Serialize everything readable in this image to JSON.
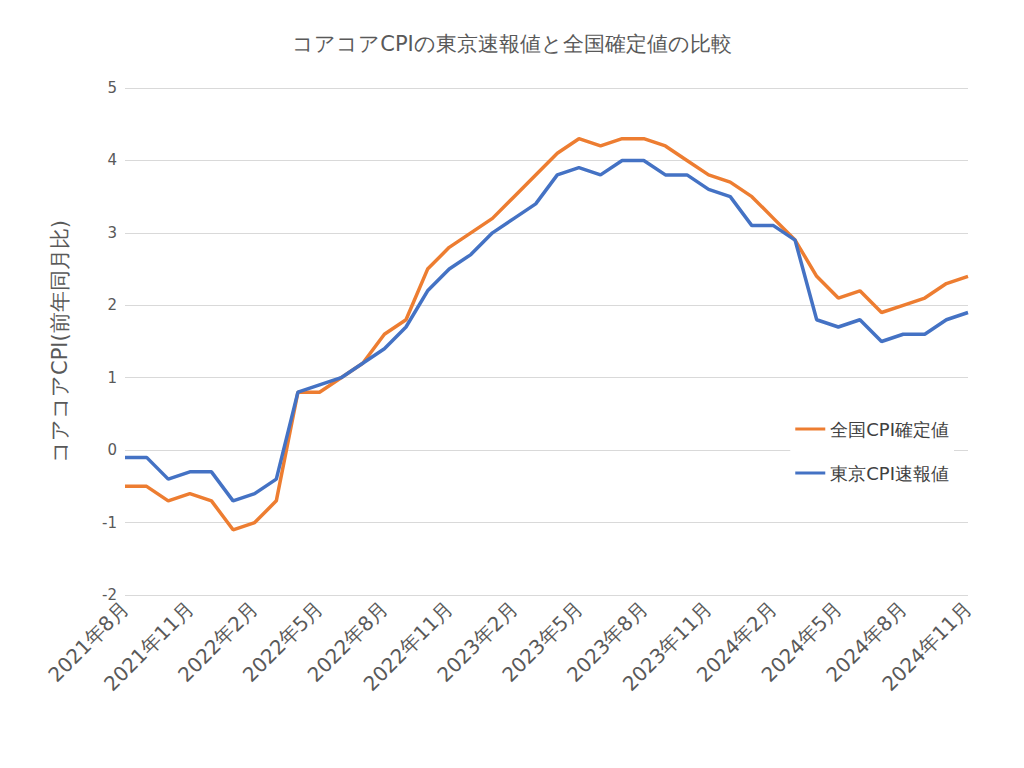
{
  "chart_data": {
    "type": "line",
    "title": "コアコアCPIの東京速報値と全国確定値の比較",
    "y_label": "コアコアCPI(前年同月比)",
    "categories": [
      "2021年8月",
      null,
      null,
      "2021年11月",
      null,
      null,
      "2022年2月",
      null,
      null,
      "2022年5月",
      null,
      null,
      "2022年8月",
      null,
      null,
      "2022年11月",
      null,
      null,
      "2023年2月",
      null,
      null,
      "2023年5月",
      null,
      null,
      "2023年8月",
      null,
      null,
      "2023年11月",
      null,
      null,
      "2024年2月",
      null,
      null,
      "2024年5月",
      null,
      null,
      "2024年8月",
      null,
      null,
      "2024年11月"
    ],
    "series": [
      {
        "name": "全国CPI確定値",
        "color": "#ed7d31",
        "values": [
          -0.5,
          -0.5,
          -0.7,
          -0.6,
          -0.7,
          -1.1,
          -1.0,
          -0.7,
          0.8,
          0.8,
          1.0,
          1.2,
          1.6,
          1.8,
          2.5,
          2.8,
          3.0,
          3.2,
          3.5,
          3.8,
          4.1,
          4.3,
          4.2,
          4.3,
          4.3,
          4.2,
          4.0,
          3.8,
          3.7,
          3.5,
          3.2,
          2.9,
          2.4,
          2.1,
          2.2,
          1.9,
          2.0,
          2.1,
          2.3,
          2.4
        ]
      },
      {
        "name": "東京CPI速報値",
        "color": "#4472c4",
        "values": [
          -0.1,
          -0.1,
          -0.4,
          -0.3,
          -0.3,
          -0.7,
          -0.6,
          -0.4,
          0.8,
          0.9,
          1.0,
          1.2,
          1.4,
          1.7,
          2.2,
          2.5,
          2.7,
          3.0,
          3.2,
          3.4,
          3.8,
          3.9,
          3.8,
          4.0,
          4.0,
          3.8,
          3.8,
          3.6,
          3.5,
          3.1,
          3.1,
          2.9,
          1.8,
          1.7,
          1.8,
          1.5,
          1.6,
          1.6,
          1.8,
          1.9
        ]
      }
    ],
    "ylim": [
      -2,
      5
    ],
    "yticks": [
      -2,
      -1,
      0,
      1,
      2,
      3,
      4,
      5
    ],
    "grid": true,
    "legend": "right"
  }
}
